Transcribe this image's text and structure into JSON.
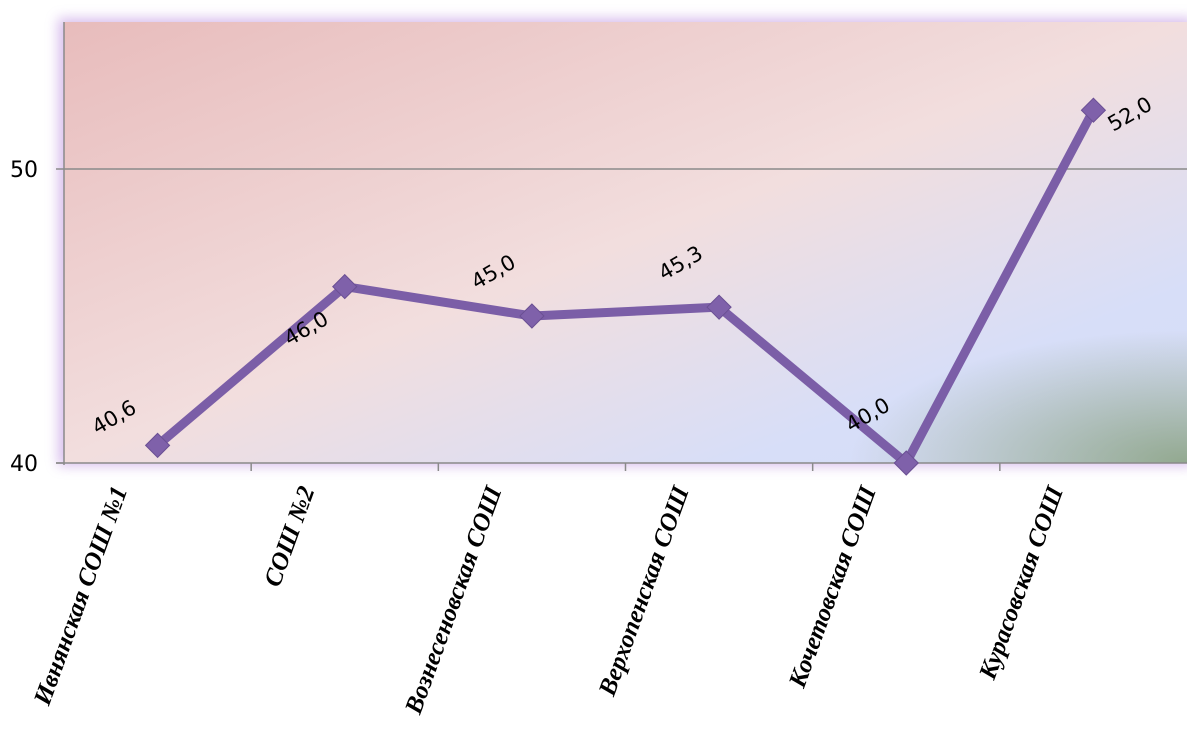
{
  "chart_data": {
    "type": "line",
    "categories": [
      "Ивнянская СОШ №1",
      "СОШ №2",
      "Вознесеновская СОШ",
      "Верхопенская СОШ",
      "Кочетовская СОШ",
      "Курасовская СОШ"
    ],
    "series": [
      {
        "values": [
          40.6,
          46.0,
          45.0,
          45.3,
          40.0,
          52.0
        ],
        "labels": [
          "40,6",
          "46,0",
          "45,0",
          "45,3",
          "40,0",
          "52,0"
        ],
        "color": "#7b5ea7"
      }
    ],
    "yticks": [
      {
        "value": 40,
        "label": "40"
      },
      {
        "value": 50,
        "label": "50"
      }
    ],
    "ylim": [
      40,
      55
    ],
    "grid": true,
    "legend": "none",
    "colors": {
      "plot_gradient_start": "#e8bcbc",
      "plot_gradient_mid": "#f2dede",
      "plot_gradient_end": "#d7def8",
      "frame_glow": "#c9a4e6",
      "gridline": "#8a8a8a"
    }
  }
}
